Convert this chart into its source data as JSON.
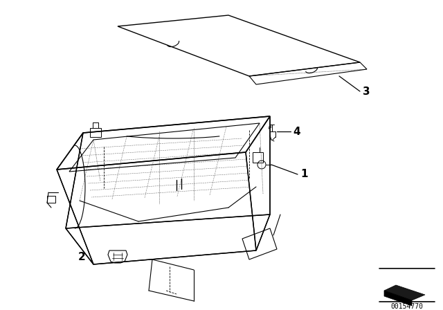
{
  "background_color": "#ffffff",
  "line_color": "#000000",
  "fig_width": 6.4,
  "fig_height": 4.48,
  "dpi": 100,
  "watermark_text": "00154770",
  "label1": "1",
  "label2": "2",
  "label3": "3",
  "label4": "4"
}
